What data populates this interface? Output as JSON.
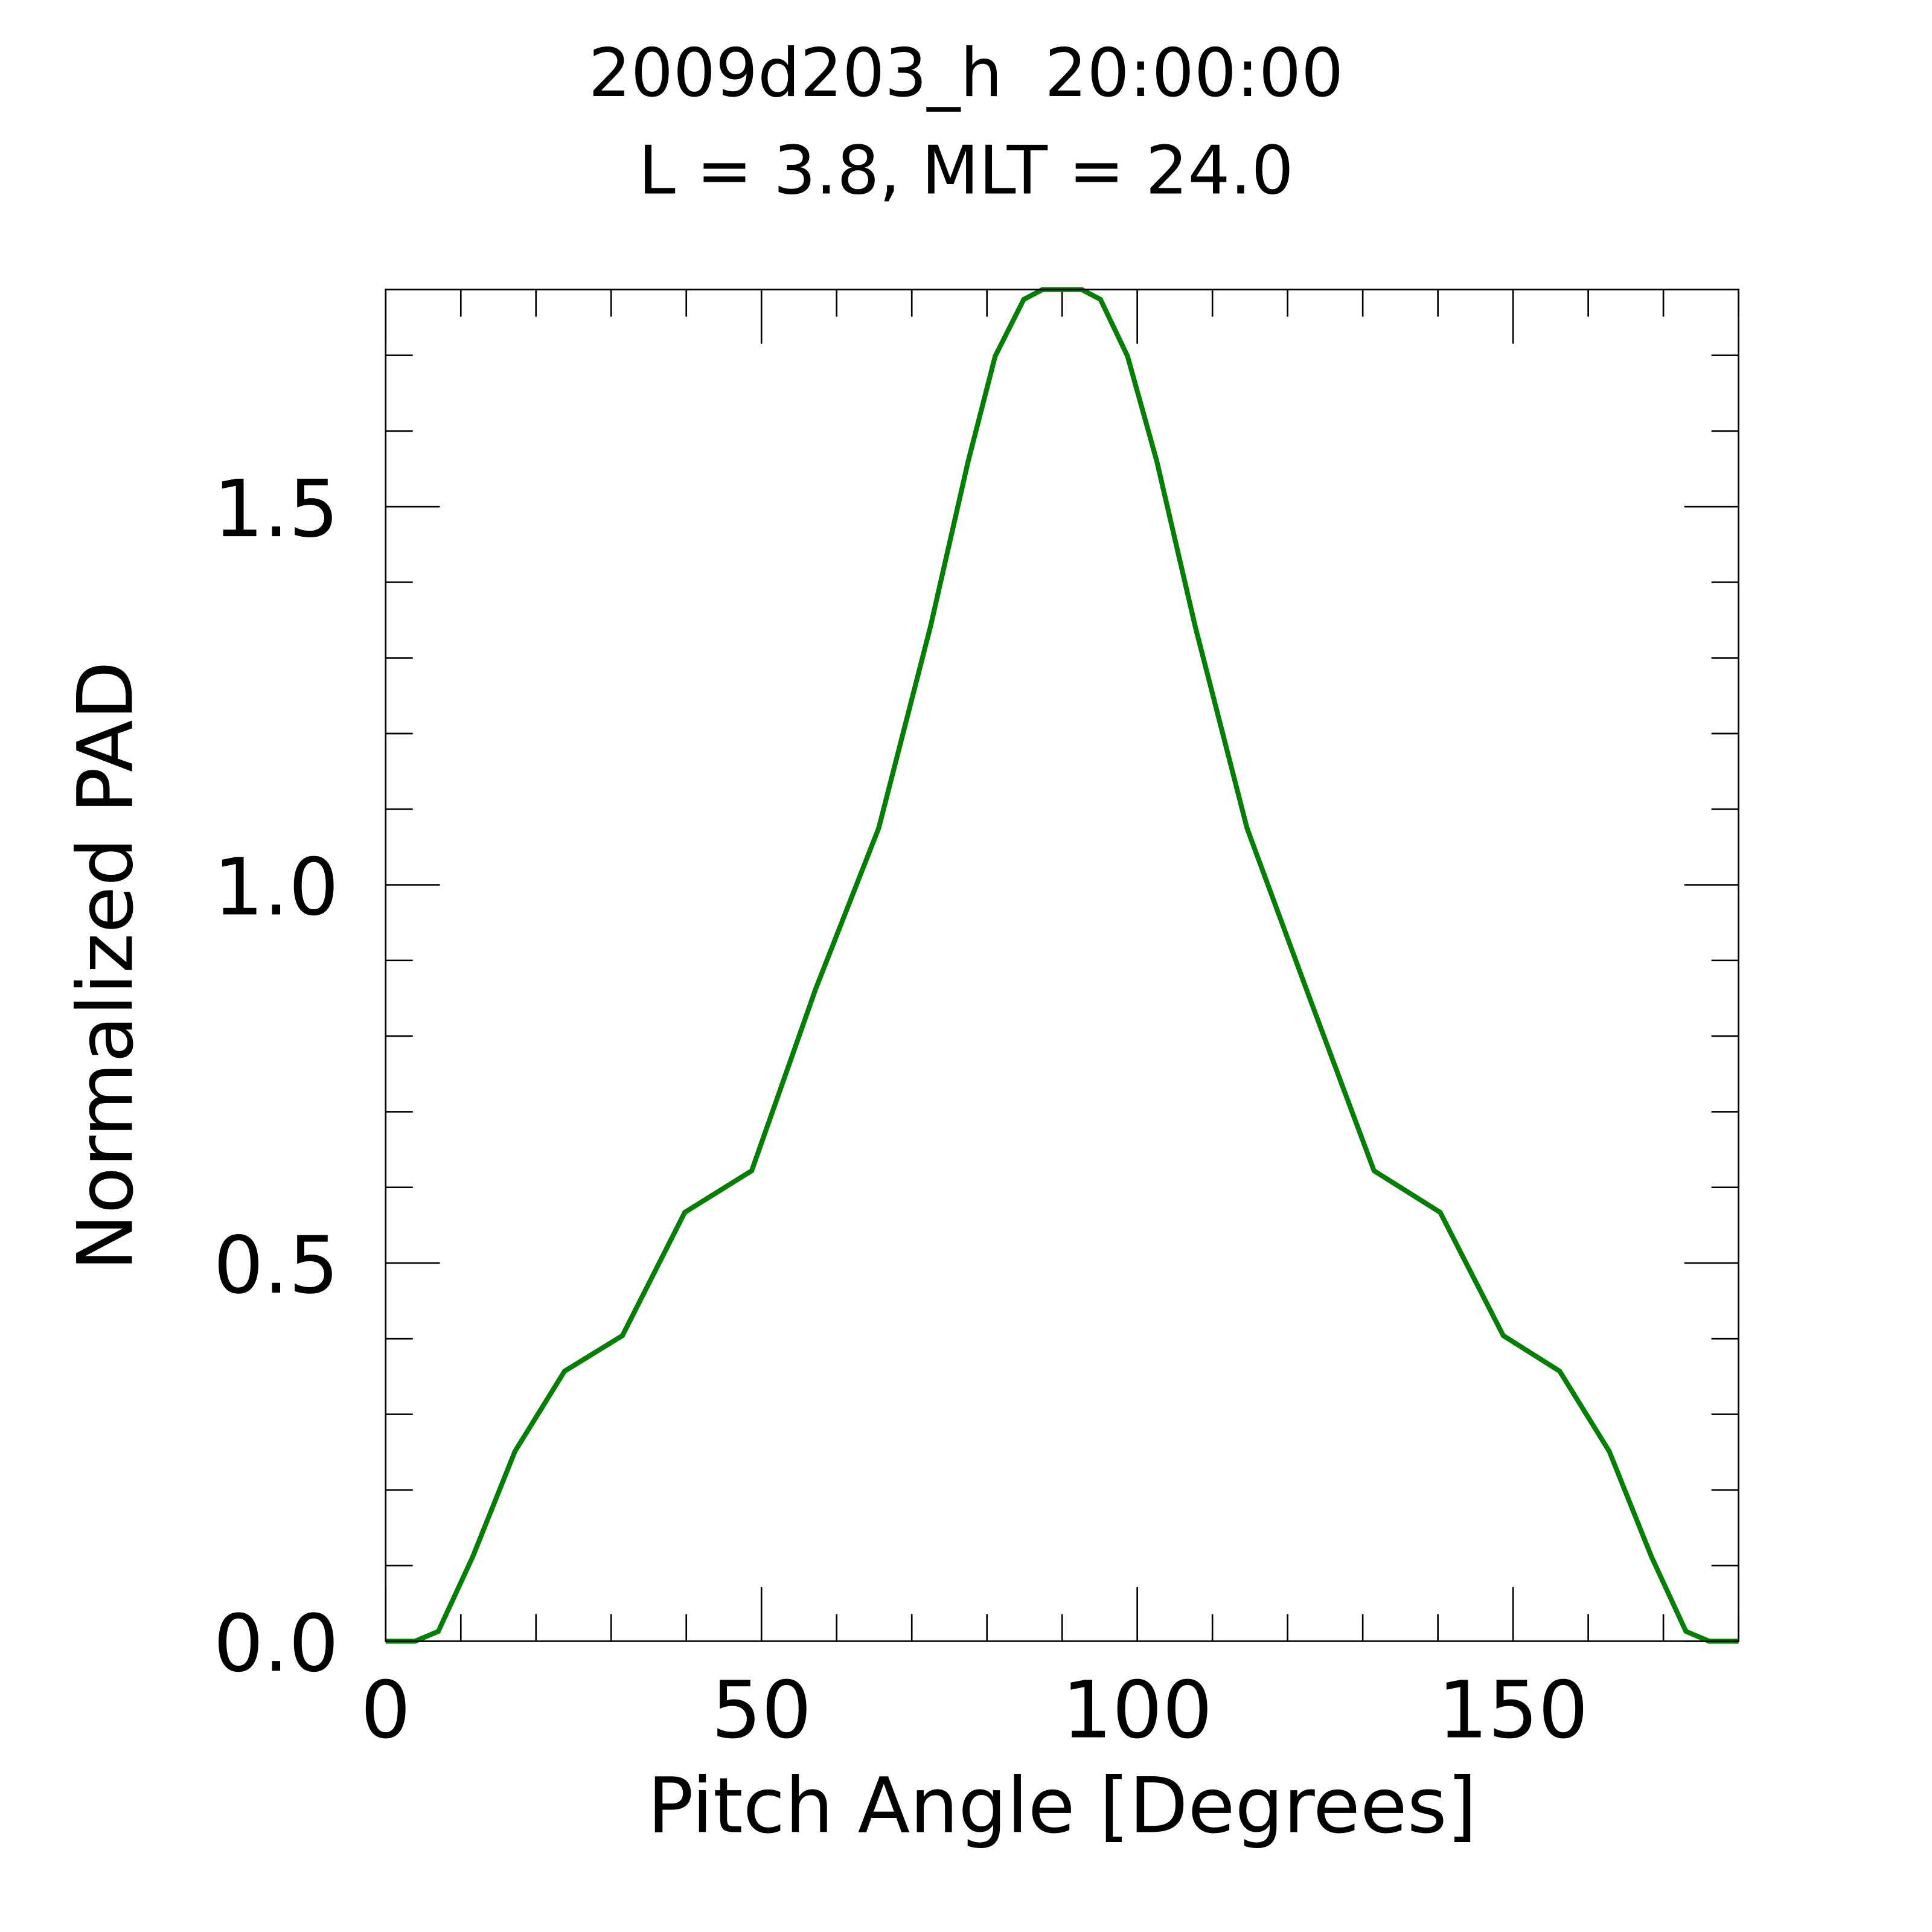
{
  "chart_data": {
    "type": "line",
    "title": "2009d203_h  20:00:00",
    "subtitle": "L = 3.8, MLT = 24.0",
    "xlabel": "Pitch Angle [Degrees]",
    "ylabel": "Normalized PAD",
    "xlim": [
      0,
      180
    ],
    "ylim": [
      0,
      1.787
    ],
    "xticks": [
      0,
      50,
      100,
      150
    ],
    "xtick_labels": [
      "0",
      "50",
      "100",
      "150"
    ],
    "yticks": [
      0,
      0.5,
      1.0,
      1.5
    ],
    "ytick_labels": [
      "0.0",
      "0.5",
      "1.0",
      "1.5"
    ],
    "x_minor_step": 10,
    "y_minor_step": 0.1,
    "grid": false,
    "series": [
      {
        "name": "PAD",
        "color": "#007f00",
        "x": [
          0,
          3.9,
          7.0,
          11.6,
          17.2,
          23.8,
          31.5,
          39.8,
          48.7,
          57.2,
          65.6,
          72.5,
          77.5,
          81.1,
          84.9,
          87.4,
          92.6,
          95.1,
          98.7,
          102.6,
          107.7,
          114.6,
          122.5,
          131.5,
          140.3,
          148.7,
          156.2,
          162.8,
          168.4,
          173.0,
          176.1,
          180
        ],
        "y": [
          0,
          0,
          0.013,
          0.112,
          0.251,
          0.357,
          0.404,
          0.567,
          0.622,
          0.862,
          1.075,
          1.342,
          1.56,
          1.699,
          1.774,
          1.787,
          1.787,
          1.774,
          1.699,
          1.56,
          1.342,
          1.075,
          0.862,
          0.622,
          0.567,
          0.404,
          0.357,
          0.251,
          0.112,
          0.013,
          0,
          0
        ]
      }
    ]
  }
}
